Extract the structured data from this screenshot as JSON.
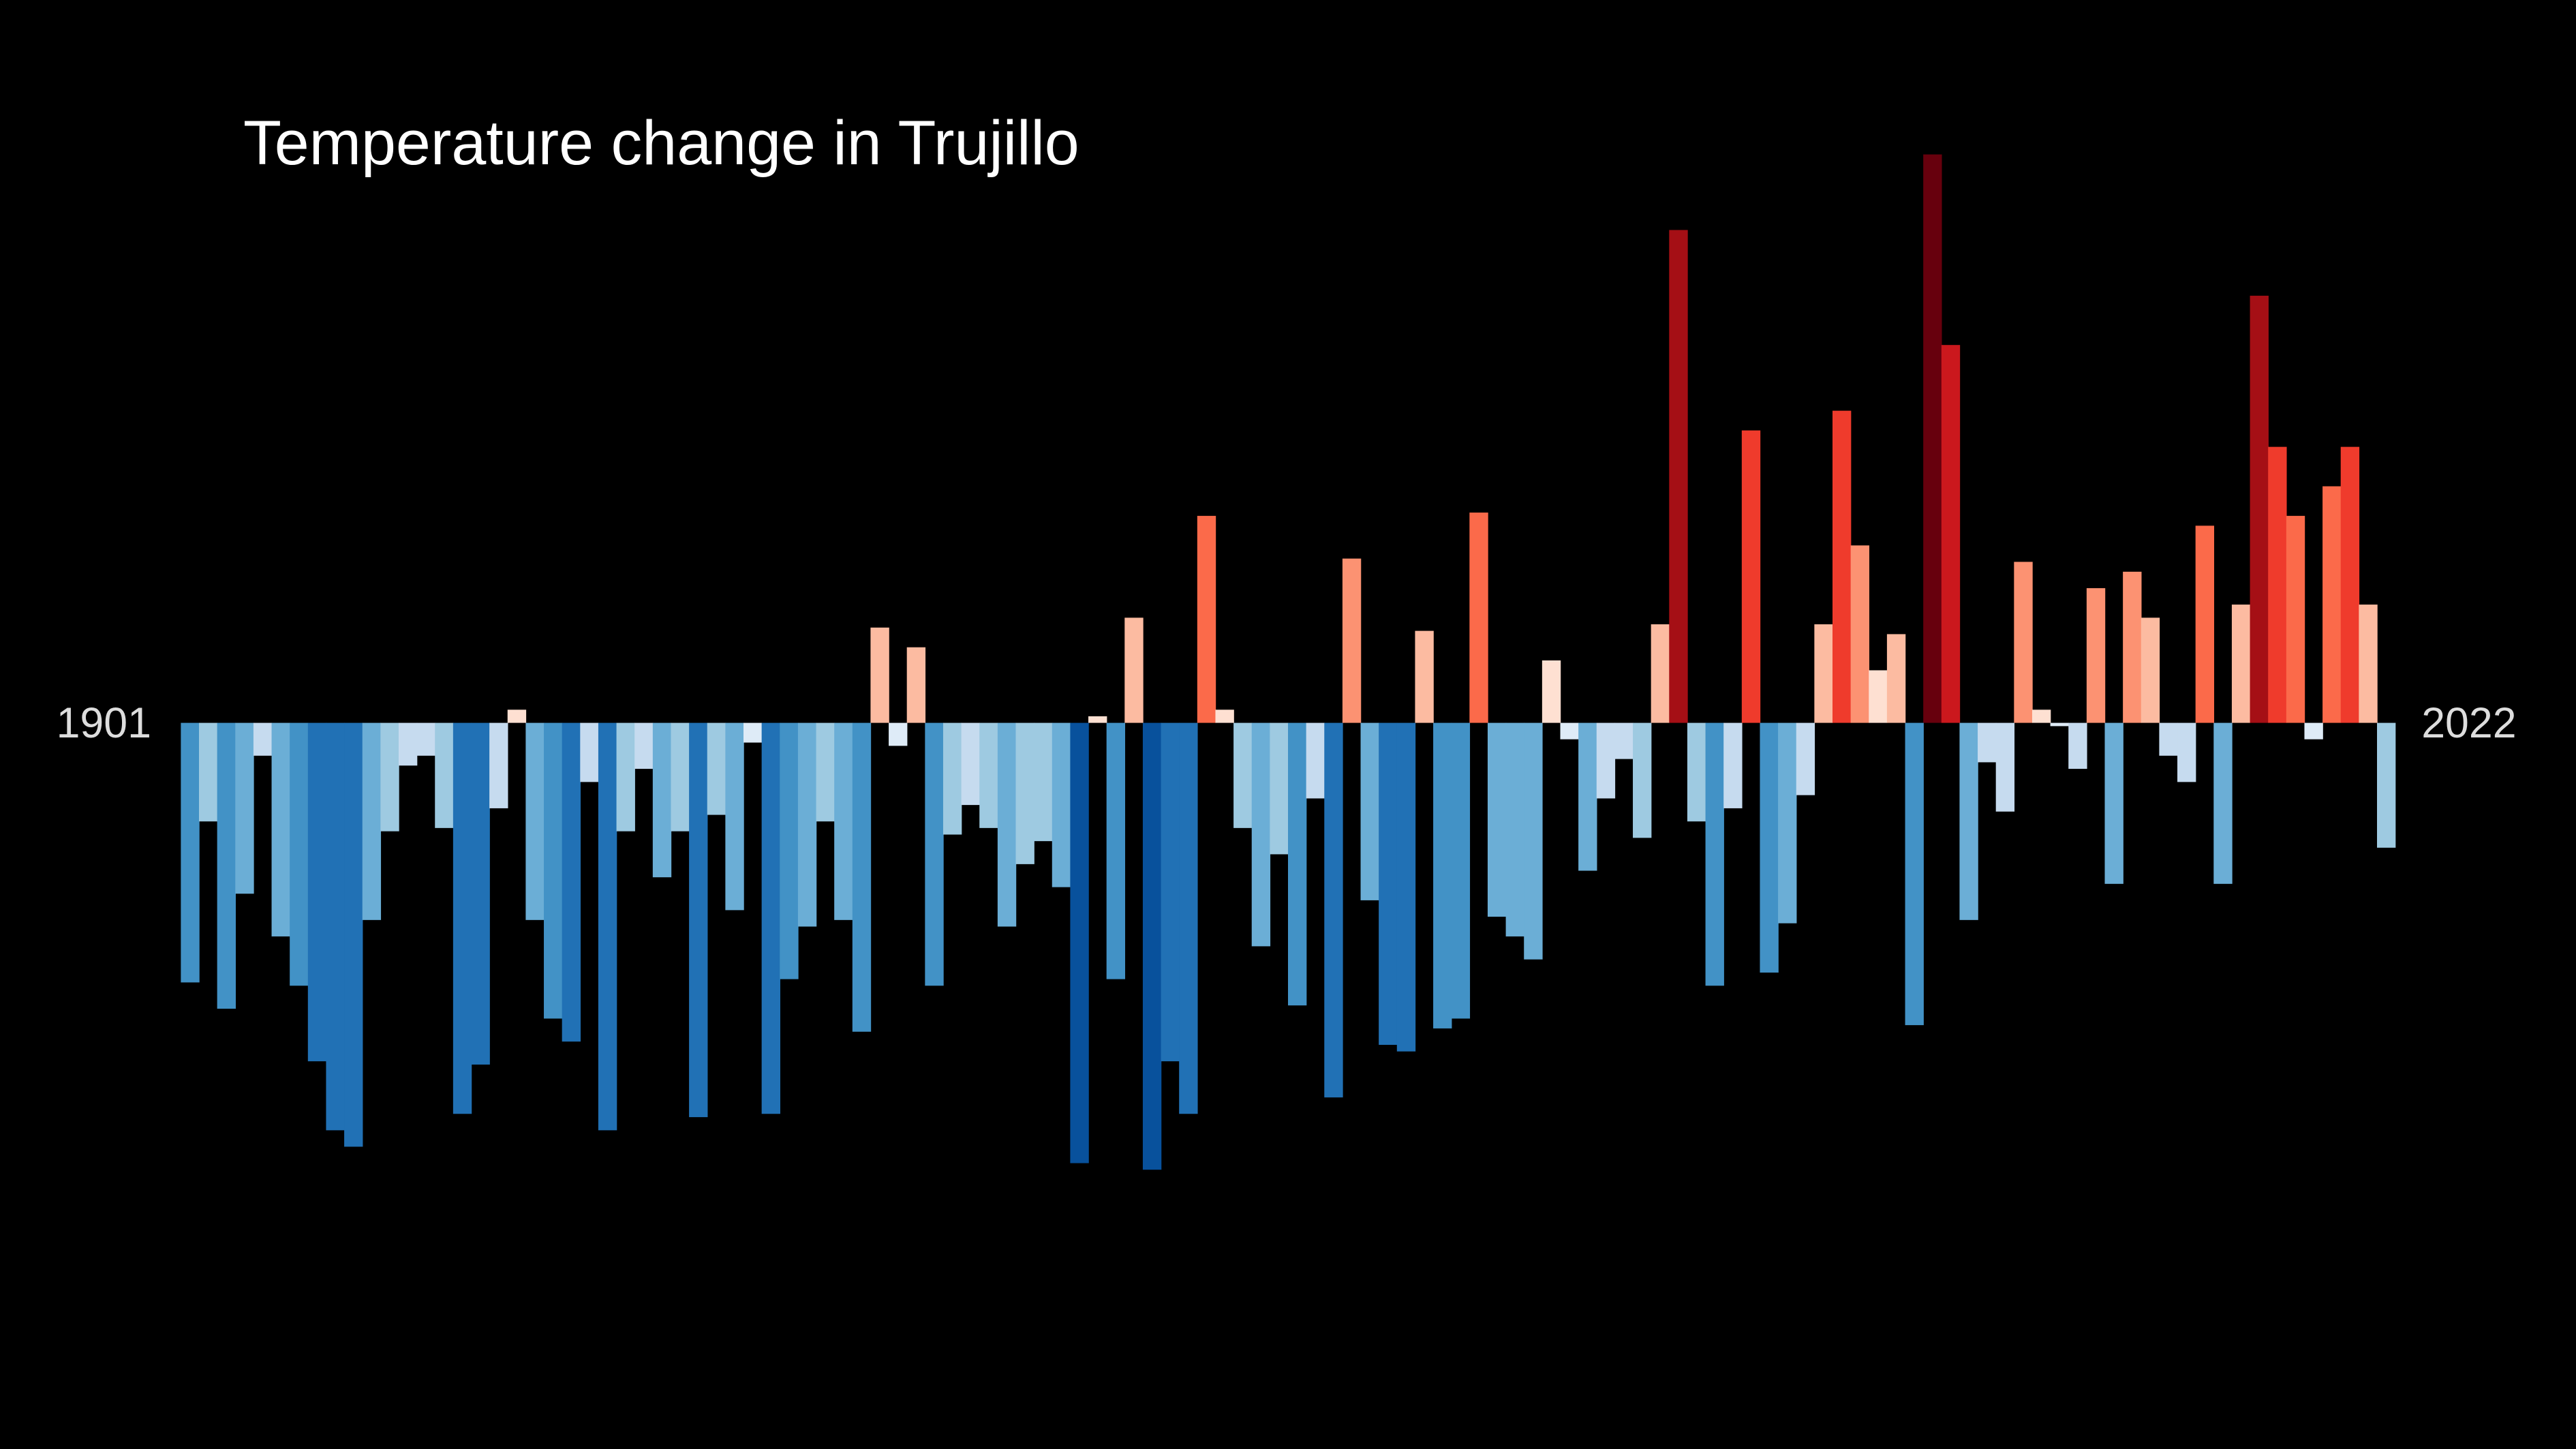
{
  "chart_data": {
    "type": "bar",
    "title": "Temperature change in Trujillo",
    "categories": [
      "1901",
      null,
      null,
      null,
      null,
      null,
      null,
      null,
      null,
      null,
      null,
      null,
      null,
      null,
      null,
      null,
      null,
      null,
      null,
      null,
      null,
      null,
      null,
      null,
      null,
      null,
      null,
      null,
      null,
      null,
      null,
      null,
      null,
      null,
      null,
      null,
      null,
      null,
      null,
      null,
      null,
      null,
      null,
      null,
      null,
      null,
      null,
      null,
      null,
      null,
      null,
      null,
      null,
      null,
      null,
      null,
      null,
      null,
      null,
      null,
      null,
      null,
      null,
      null,
      null,
      null,
      null,
      null,
      null,
      null,
      null,
      null,
      null,
      null,
      null,
      null,
      null,
      null,
      null,
      null,
      null,
      null,
      null,
      null,
      null,
      null,
      null,
      null,
      null,
      null,
      null,
      null,
      null,
      null,
      null,
      null,
      null,
      null,
      null,
      null,
      null,
      null,
      null,
      null,
      null,
      null,
      null,
      null,
      null,
      null,
      null,
      null,
      null,
      null,
      null,
      null,
      null,
      null,
      null,
      null,
      null,
      "2022"
    ],
    "values": [
      -0.79,
      -0.3,
      -0.87,
      -0.52,
      -0.1,
      -0.65,
      -0.8,
      -1.03,
      -1.24,
      -1.29,
      -0.6,
      -0.33,
      -0.13,
      -0.1,
      -0.32,
      -1.19,
      -1.04,
      -0.26,
      0.04,
      -0.6,
      -0.9,
      -0.97,
      -0.18,
      -1.24,
      -0.33,
      -0.14,
      -0.47,
      -0.33,
      -1.2,
      -0.28,
      -0.57,
      -0.06,
      -1.19,
      -0.78,
      -0.62,
      -0.3,
      -0.6,
      -0.94,
      0.29,
      -0.07,
      0.23,
      -0.8,
      -0.34,
      -0.25,
      -0.32,
      -0.62,
      -0.43,
      -0.36,
      -0.5,
      -1.34,
      0.02,
      -0.78,
      0.32,
      -1.36,
      -1.03,
      -1.19,
      0.63,
      0.04,
      -0.32,
      -0.68,
      -0.4,
      -0.86,
      -0.23,
      -1.14,
      0.5,
      -0.54,
      -0.98,
      -1.0,
      0.28,
      -0.93,
      -0.9,
      0.64,
      -0.59,
      -0.65,
      -0.72,
      0.19,
      -0.05,
      -0.45,
      -0.23,
      -0.11,
      -0.35,
      0.3,
      1.5,
      -0.3,
      -0.8,
      -0.26,
      0.89,
      -0.76,
      -0.61,
      -0.22,
      0.3,
      0.95,
      0.54,
      0.16,
      0.27,
      -0.92,
      1.73,
      1.15,
      -0.6,
      -0.12,
      -0.27,
      0.49,
      0.04,
      -0.01,
      -0.14,
      0.41,
      -0.49,
      0.46,
      0.32,
      -0.1,
      -0.18,
      0.6,
      -0.49,
      0.36,
      1.3,
      0.84,
      0.63,
      -0.05,
      0.72,
      0.84,
      0.36,
      -0.38
    ],
    "ylim": [
      -2.2,
      2.2
    ]
  }
}
